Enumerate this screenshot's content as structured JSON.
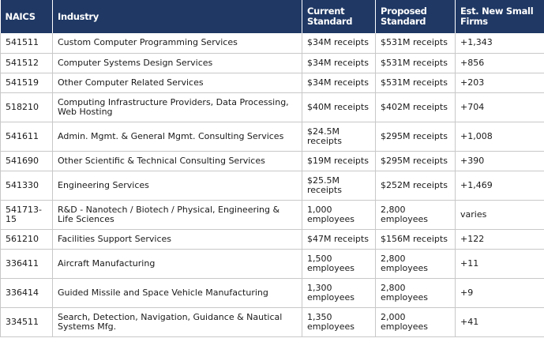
{
  "table": {
    "headers": [
      "NAICS",
      "Industry",
      "Current Standard",
      "Proposed Standard",
      "Est. New Small Firms"
    ],
    "rows": [
      [
        "541511",
        "Custom Computer Programming Services",
        "$34M receipts",
        "$531M receipts",
        "+1,343"
      ],
      [
        "541512",
        "Computer Systems Design Services",
        "$34M receipts",
        "$531M receipts",
        "+856"
      ],
      [
        "541519",
        "Other Computer Related Services",
        "$34M receipts",
        "$531M receipts",
        "+203"
      ],
      [
        "518210",
        "Computing Infrastructure Providers, Data Processing, Web Hosting",
        "$40M receipts",
        "$402M receipts",
        "+704"
      ],
      [
        "541611",
        "Admin. Mgmt. & General Mgmt. Consulting Services",
        "$24.5M receipts",
        "$295M receipts",
        "+1,008"
      ],
      [
        "541690",
        "Other Scientific & Technical Consulting Services",
        "$19M receipts",
        "$295M receipts",
        "+390"
      ],
      [
        "541330",
        "Engineering Services",
        "$25.5M receipts",
        "$252M receipts",
        "+1,469"
      ],
      [
        "541713-15",
        "R&D - Nanotech / Biotech / Physical, Engineering & Life Sciences",
        "1,000 employees",
        "2,800 employees",
        "varies"
      ],
      [
        "561210",
        "Facilities Support Services",
        "$47M receipts",
        "$156M receipts",
        "+122"
      ],
      [
        "336411",
        "Aircraft Manufacturing",
        "1,500 employees",
        "2,800 employees",
        "+11"
      ],
      [
        "336414",
        "Guided Missile and Space Vehicle Manufacturing",
        "1,300 employees",
        "2,800 employees",
        "+9"
      ],
      [
        "334511",
        "Search, Detection, Navigation, Guidance & Nautical Systems Mfg.",
        "1,350 employees",
        "2,000 employees",
        "+41"
      ]
    ]
  },
  "colors": {
    "header_bg": "#1f3864",
    "header_text": "#ffffff",
    "grid": "#c8c8c8"
  }
}
